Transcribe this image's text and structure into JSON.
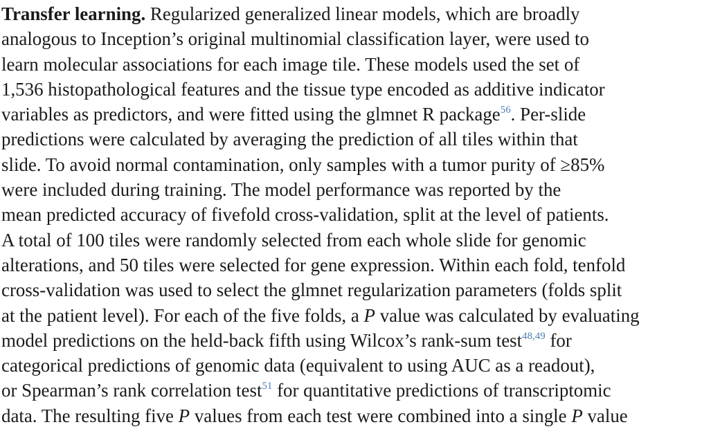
{
  "section": {
    "heading": "Transfer learning.",
    "lines": [
      {
        "text": " Regularized generalized linear models, which are broadly"
      },
      {
        "text": "analogous to Inception’s original multinomial classification layer, were used to"
      },
      {
        "text": "learn molecular associations for each image tile. These models used the set of"
      },
      {
        "text": "1,536 histopathological features and the tissue type encoded as additive indicator"
      },
      {
        "pre": "variables as predictors, and were fitted using the glmnet R package",
        "ref": "56",
        "post": ". Per-slide"
      },
      {
        "text": "predictions were calculated by averaging the prediction of all tiles within that"
      },
      {
        "text": "slide. To avoid normal contamination, only samples with a tumor purity of ≥85%"
      },
      {
        "text": "were included during training. The model performance was reported by the"
      },
      {
        "text": "mean predicted accuracy of fivefold cross-validation, split at the level of patients."
      },
      {
        "text": "A total of 100 tiles were randomly selected from each whole slide for genomic"
      },
      {
        "text": "alterations, and 50 tiles were selected for gene expression. Within each fold, tenfold"
      },
      {
        "text": "cross-validation was used to select the glmnet regularization parameters (folds split"
      },
      {
        "pre": "at the patient level). For each of the five folds, a ",
        "ital": "P",
        "post": " value was calculated by evaluating"
      },
      {
        "pre": "model predictions on the held-back fifth using Wilcox’s rank-sum test",
        "ref": "48,49",
        "post": " for"
      },
      {
        "text": "categorical predictions of genomic data (equivalent to using AUC as a readout),"
      },
      {
        "pre": "or Spearman’s rank correlation test",
        "ref": "51",
        "post": " for quantitative predictions of transcriptomic"
      },
      {
        "pre": "data. The resulting five ",
        "ital": "P",
        "mid": " values from each test were combined into a single ",
        "ital2": "P",
        "post": " value"
      }
    ]
  }
}
